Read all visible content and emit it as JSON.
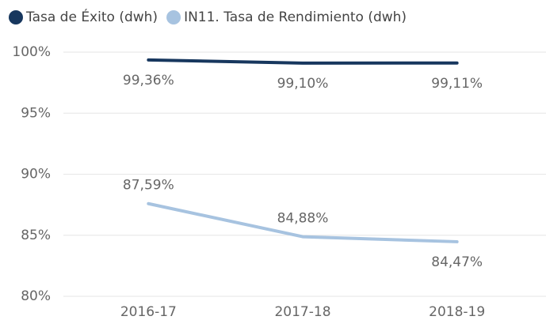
{
  "chart_data": {
    "type": "line",
    "categories": [
      "2016-17",
      "2017-18",
      "2018-19"
    ],
    "series": [
      {
        "name": "Tasa de Éxito (dwh)",
        "color": "#17375e",
        "values": [
          99.36,
          99.1,
          99.11
        ],
        "value_labels": [
          "99,36%",
          "99,10%",
          "99,11%"
        ]
      },
      {
        "name": "IN11. Tasa de Rendimiento (dwh)",
        "color": "#a7c3e0",
        "values": [
          87.59,
          84.88,
          84.47
        ],
        "value_labels": [
          "87,59%",
          "84,88%",
          "84,47%"
        ]
      }
    ],
    "ylim": [
      80,
      100
    ],
    "yticks": [
      {
        "value": 80,
        "label": "80%"
      },
      {
        "value": 85,
        "label": "85%"
      },
      {
        "value": 90,
        "label": "90%"
      },
      {
        "value": 95,
        "label": "95%"
      },
      {
        "value": 100,
        "label": "100%"
      }
    ],
    "grid": true,
    "legend": "top"
  }
}
